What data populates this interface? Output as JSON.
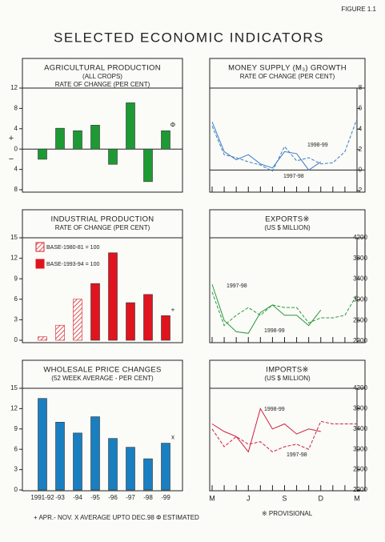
{
  "header": {
    "figure": "FIGURE 1.1",
    "title": "SELECTED ECONOMIC INDICATORS"
  },
  "chart_data": [
    {
      "type": "bar",
      "title": "AGRICULTURAL PRODUCTION",
      "subtitles": [
        "(ALL CROPS)",
        "RATE OF CHANGE (PER CENT)"
      ],
      "categories": [
        null,
        null,
        null,
        null,
        null,
        null,
        null,
        null
      ],
      "series": [
        {
          "color": "#1e9a34",
          "values": [
            -2.0,
            4.1,
            3.6,
            4.7,
            -3.0,
            9.1,
            -6.4,
            3.6
          ],
          "markers": [
            null,
            null,
            null,
            null,
            null,
            null,
            null,
            "Φ"
          ]
        }
      ],
      "ylim": [
        -8,
        12
      ],
      "yticks": [
        12,
        8,
        4,
        0,
        {
          "value": -4,
          "label": "4"
        },
        {
          "value": -8,
          "label": "8"
        }
      ],
      "y_sign_labels": [
        "+",
        "−"
      ],
      "axis_side": "left"
    },
    {
      "type": "line",
      "title": "MONEY SUPPLY (M₃) GROWTH",
      "subtitles": [
        "RATE OF CHANGE (PER CENT)"
      ],
      "categories": [
        null,
        null,
        null,
        null,
        null,
        null,
        null,
        null,
        null,
        null,
        null,
        null,
        null
      ],
      "series": [
        {
          "name": "1998-99",
          "color": "#3a7cc4",
          "line_style": "solid",
          "values": [
            4.7,
            1.8,
            1.0,
            1.5,
            0.6,
            0.2,
            1.8,
            1.6,
            0.0,
            0.8,
            null,
            null,
            null
          ]
        },
        {
          "name": "1997-98",
          "color": "#3a7cc4",
          "line_style": "dashed",
          "values": [
            4.3,
            1.5,
            1.2,
            0.8,
            0.5,
            -0.1,
            2.3,
            0.9,
            1.2,
            0.6,
            0.7,
            1.8,
            5.0
          ]
        }
      ],
      "ylim": [
        -2,
        8
      ],
      "yticks": [
        8,
        6,
        4,
        2,
        0,
        {
          "value": -2,
          "label": "2"
        }
      ],
      "axis_side": "right"
    },
    {
      "type": "bar",
      "title": "INDUSTRIAL PRODUCTION",
      "subtitles": [
        "RATE OF CHANGE (PER CENT)"
      ],
      "categories": [
        null,
        null,
        null,
        null,
        null,
        null,
        null,
        null
      ],
      "series": [
        {
          "name": "BASE-1980-81 = 100",
          "color": "#d8202c",
          "hatch": true,
          "values": [
            0.5,
            2.2,
            6.0,
            null,
            null,
            null,
            null,
            null
          ]
        },
        {
          "name": "BASE-1993-94 = 100",
          "color": "#e0141e",
          "hatch": false,
          "values": [
            null,
            null,
            null,
            8.3,
            12.8,
            5.5,
            6.7,
            3.6
          ],
          "markers": [
            null,
            null,
            null,
            null,
            null,
            null,
            null,
            "+"
          ]
        }
      ],
      "ylim": [
        0,
        15
      ],
      "yticks": [
        15,
        12,
        9,
        6,
        3,
        0
      ],
      "legend": true,
      "axis_side": "left"
    },
    {
      "type": "line",
      "title": "EXPORTS※",
      "subtitles": [
        "(US $ MILLION)"
      ],
      "categories": [
        null,
        null,
        null,
        null,
        null,
        null,
        null,
        null,
        null,
        null,
        null,
        null,
        null
      ],
      "series": [
        {
          "name": "1997-98",
          "color": "#2a9a3a",
          "line_style": "dashed",
          "values": [
            3150,
            2500,
            2700,
            2850,
            2700,
            2900,
            2850,
            2850,
            2550,
            2650,
            2650,
            2700,
            3100
          ]
        },
        {
          "name": "1998-99",
          "color": "#2a9a3a",
          "line_style": "solid",
          "values": [
            3300,
            2600,
            2380,
            2350,
            2750,
            2900,
            2700,
            2700,
            2500,
            2800,
            null,
            null,
            null
          ]
        }
      ],
      "ylim": [
        2200,
        4200
      ],
      "yticks": [
        4200,
        3800,
        3400,
        3000,
        2600,
        2200
      ],
      "axis_side": "right"
    },
    {
      "type": "bar",
      "title": "WHOLESALE PRICE CHANGES",
      "subtitles": [
        "(52 WEEK AVERAGE - PER CENT)"
      ],
      "categories": [
        "1991-92",
        "-93",
        "-94",
        "-95",
        "-96",
        "-97",
        "-98",
        "-99"
      ],
      "series": [
        {
          "color": "#1a7fc0",
          "values": [
            13.5,
            10.0,
            8.4,
            10.8,
            7.6,
            6.3,
            4.6,
            6.9
          ],
          "markers": [
            null,
            null,
            null,
            null,
            null,
            null,
            null,
            "x"
          ]
        }
      ],
      "ylim": [
        0,
        15
      ],
      "yticks": [
        15,
        12,
        9,
        6,
        3,
        0
      ],
      "axis_side": "left"
    },
    {
      "type": "line",
      "title": "IMPORTS※",
      "subtitles": [
        "(US $ MILLION)"
      ],
      "categories": [
        "M",
        null,
        null,
        "J",
        null,
        null,
        "S",
        null,
        null,
        "D",
        null,
        null,
        "M"
      ],
      "series": [
        {
          "name": "1998-99",
          "color": "#d0203a",
          "line_style": "solid",
          "values": [
            3500,
            3350,
            3250,
            2950,
            3800,
            3400,
            3500,
            3300,
            3400,
            3350,
            null,
            null,
            null
          ]
        },
        {
          "name": "1997-98",
          "color": "#d0203a",
          "line_style": "dashed",
          "values": [
            3400,
            3050,
            3250,
            3100,
            3150,
            2950,
            3050,
            3100,
            3000,
            3550,
            3500,
            3500,
            3500
          ]
        }
      ],
      "ylim": [
        2200,
        4200
      ],
      "yticks": [
        4200,
        3800,
        3400,
        3000,
        2600,
        2200
      ],
      "axis_side": "right"
    }
  ],
  "footnotes": [
    "+ APR.- NOV.   X AVERAGE UPTO DEC.98   Φ ESTIMATED",
    "※ PROVISIONAL"
  ]
}
